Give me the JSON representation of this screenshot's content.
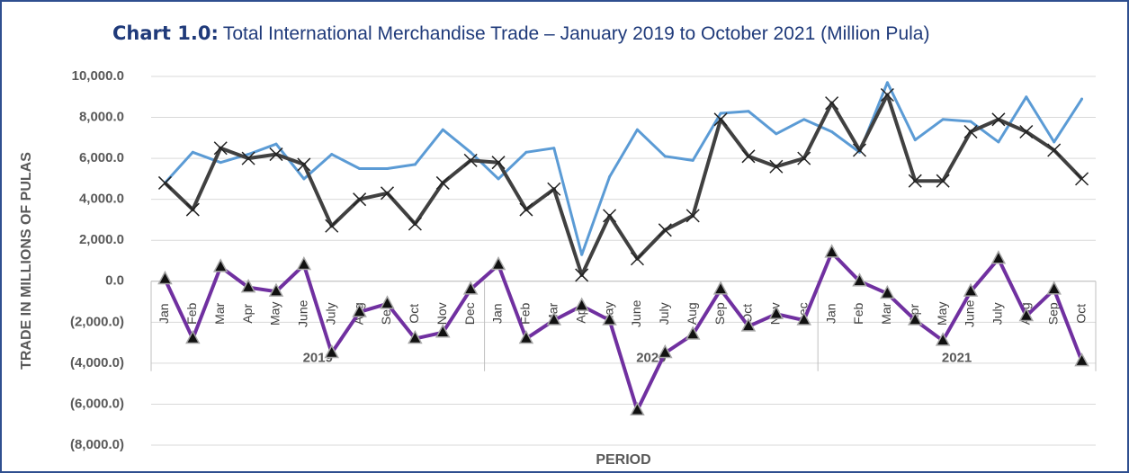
{
  "chart_data": {
    "type": "line",
    "title_label": "Chart 1.0:",
    "title": "Total International Merchandise Trade – January 2019 to October 2021 (Million Pula)",
    "y_label": "TRADE IN MILLIONS OF PULAS",
    "x_label": "PERIOD",
    "categories": [
      "Jan",
      "Feb",
      "Mar",
      "Apr",
      "May",
      "June",
      "July",
      "Aug",
      "Sep",
      "Oct",
      "Nov",
      "Dec",
      "Jan",
      "Feb",
      "Mar",
      "Apr",
      "May",
      "June",
      "July",
      "Aug",
      "Sep",
      "Oct",
      "Nov",
      "Dec",
      "Jan",
      "Feb",
      "Mar",
      "Apr",
      "May",
      "June",
      "July",
      "Aug",
      "Sep",
      "Oct"
    ],
    "groups": [
      {
        "label": "2019",
        "size": 12
      },
      {
        "label": "2020",
        "size": 12
      },
      {
        "label": "2021",
        "size": 10
      }
    ],
    "series": [
      {
        "color": "#5b9bd5",
        "marker": "none",
        "values": [
          4800,
          6300,
          5800,
          6200,
          6700,
          5000,
          6200,
          5500,
          5500,
          5700,
          7400,
          6300,
          5000,
          6300,
          6500,
          1300,
          5100,
          7400,
          6100,
          5900,
          8200,
          8300,
          7200,
          7900,
          7300,
          6300,
          9700,
          6900,
          7900,
          7800,
          6800,
          9000,
          6800,
          8900
        ]
      },
      {
        "color": "#404040",
        "marker": "x",
        "values": [
          4800,
          3500,
          6500,
          6000,
          6200,
          5700,
          2700,
          4000,
          4300,
          2800,
          4800,
          5900,
          5800,
          3500,
          4500,
          300,
          3200,
          1100,
          2500,
          3200,
          7900,
          6100,
          5600,
          6000,
          8700,
          6400,
          9100,
          4900,
          4900,
          7300,
          7900,
          7300,
          6400,
          5000
        ]
      },
      {
        "color": "#7030a0",
        "marker": "triangle",
        "values": [
          100,
          -2800,
          700,
          -300,
          -500,
          800,
          -3500,
          -1500,
          -1100,
          -2800,
          -2500,
          -400,
          800,
          -2800,
          -1900,
          -1200,
          -1900,
          -6300,
          -3500,
          -2600,
          -400,
          -2200,
          -1600,
          -1900,
          1400,
          0,
          -600,
          -1900,
          -2900,
          -500,
          1100,
          -1700,
          -400,
          -3900
        ]
      }
    ],
    "ylim": [
      -8000,
      10000
    ],
    "yticks": [
      {
        "value": -8000,
        "label": "(8,000.0)"
      },
      {
        "value": -6000,
        "label": "(6,000.0)"
      },
      {
        "value": -4000,
        "label": "(4,000.0)"
      },
      {
        "value": -2000,
        "label": "(2,000.0)"
      },
      {
        "value": 0,
        "label": "0.0"
      },
      {
        "value": 2000,
        "label": "2,000.0"
      },
      {
        "value": 4000,
        "label": "4,000.0"
      },
      {
        "value": 6000,
        "label": "6,000.0"
      },
      {
        "value": 8000,
        "label": "8,000.0"
      },
      {
        "value": 10000,
        "label": "10,000.0"
      }
    ],
    "negative_color": "#c00000",
    "grid": true
  }
}
